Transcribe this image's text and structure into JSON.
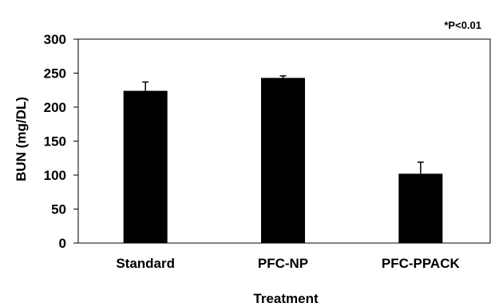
{
  "chart_data": {
    "type": "bar",
    "categories": [
      "Standard",
      "PFC-NP",
      "PFC-PPACK"
    ],
    "values": [
      224,
      243,
      102
    ],
    "errors": [
      13,
      3,
      17
    ],
    "xlabel": "Treatment",
    "ylabel": "BUN (mg/DL)",
    "ylim": [
      0,
      300
    ],
    "yticks": [
      0,
      50,
      100,
      150,
      200,
      250,
      300
    ],
    "annotation": "*P<0.01",
    "grid": false,
    "bar_color": "#000000"
  }
}
